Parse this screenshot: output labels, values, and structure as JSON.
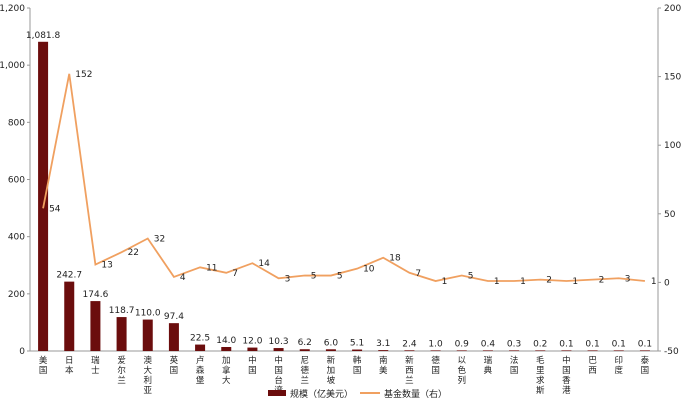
{
  "chart_data": {
    "type": "bar",
    "categories": [
      "美国",
      "日本",
      "瑞士",
      "爱尔兰",
      "澳大利亚",
      "英国",
      "卢森堡",
      "加拿大",
      "中国",
      "中国台湾",
      "尼德兰",
      "新加坡",
      "韩国",
      "南美",
      "新西兰",
      "德国",
      "以色列",
      "瑞典",
      "法国",
      "毛里求斯",
      "中国香港",
      "巴西",
      "印度",
      "泰国"
    ],
    "series": [
      {
        "name": "规模（亿美元）",
        "type": "bar",
        "axis": "left",
        "color": "#6b0d0d",
        "values": [
          1081.8,
          242.7,
          174.6,
          118.7,
          110.0,
          97.4,
          22.5,
          14.0,
          12.0,
          10.3,
          6.2,
          6.0,
          5.1,
          3.1,
          2.4,
          1.0,
          0.9,
          0.4,
          0.3,
          0.2,
          0.1,
          0.1,
          0.1,
          0.1
        ],
        "labels": [
          "1,081.8",
          "242.7",
          "174.6",
          "118.7",
          "110.0",
          "97.4",
          "22.5",
          "14.0",
          "12.0",
          "10.3",
          "6.2",
          "6.0",
          "5.1",
          "3.1",
          "2.4",
          "1.0",
          "0.9",
          "0.4",
          "0.3",
          "0.2",
          "0.1",
          "0.1",
          "0.1",
          "0.1"
        ]
      },
      {
        "name": "基金数量（右）",
        "type": "line",
        "axis": "right",
        "color": "#f0a060",
        "values": [
          54,
          152,
          13,
          22,
          32,
          4,
          11,
          7,
          14,
          3,
          5,
          5,
          10,
          18,
          7,
          1,
          5,
          1,
          1,
          2,
          1,
          2,
          3,
          1
        ]
      }
    ],
    "y_left": {
      "min": 0,
      "max": 1200,
      "ticks": [
        "0",
        "200",
        "400",
        "600",
        "800",
        "1,000",
        "1,200"
      ]
    },
    "y_right": {
      "min": -50,
      "max": 200,
      "ticks": [
        "-50",
        "0",
        "50",
        "100",
        "150",
        "200"
      ]
    },
    "legend_position": "bottom",
    "grid": false
  }
}
